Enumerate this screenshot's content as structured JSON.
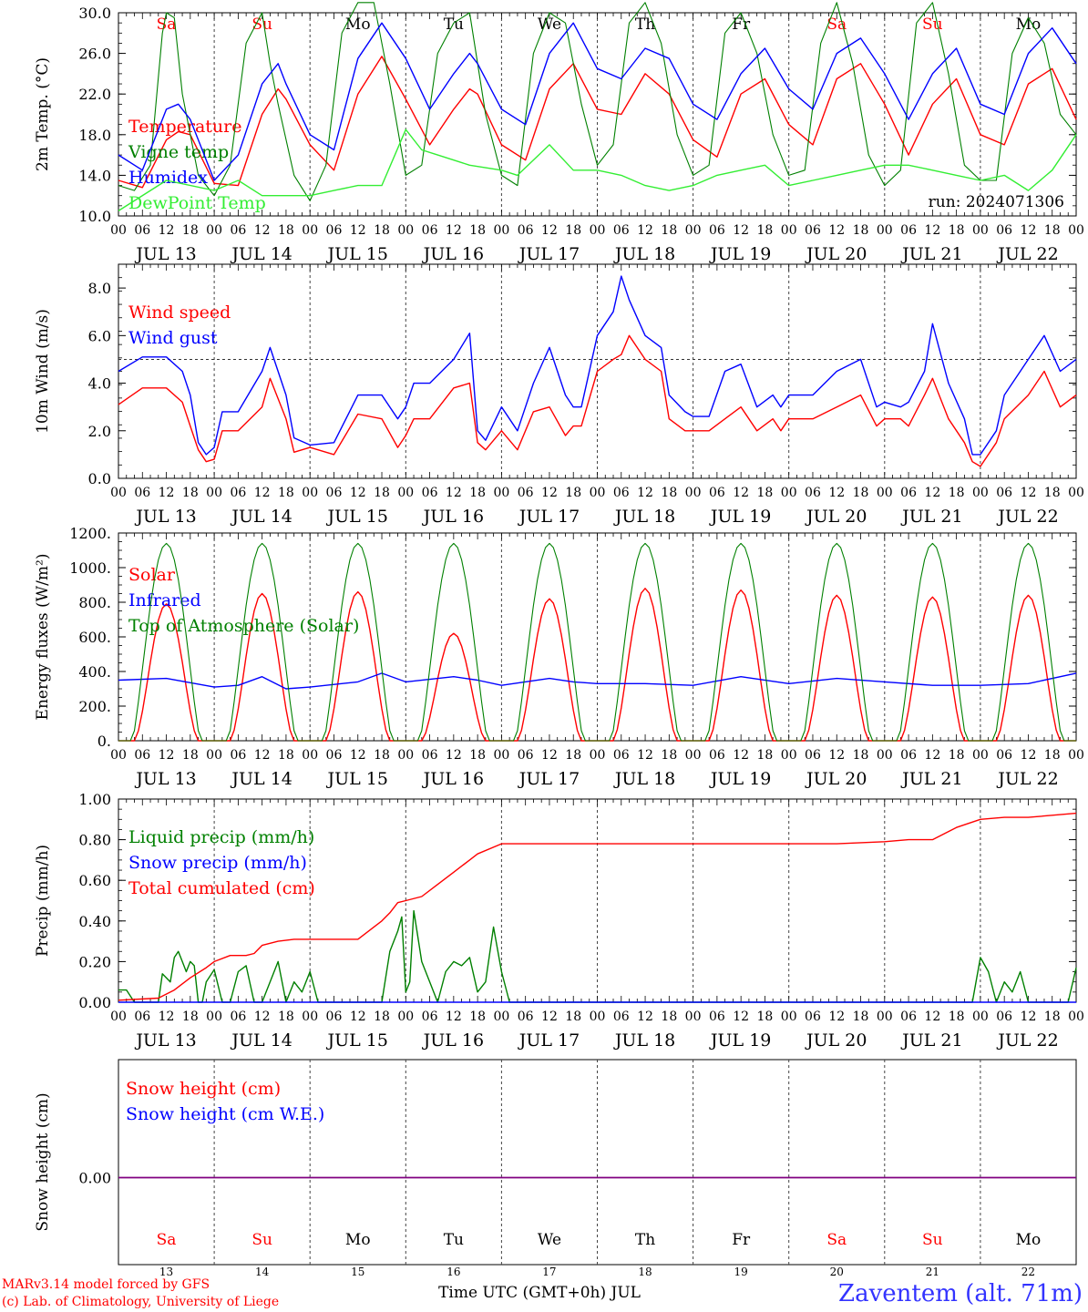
{
  "run_label": "run: 2024071306",
  "footer": {
    "model": "MARv3.14 model forced by GFS",
    "credit": "(c) Lab. of Climatology, University of Liege",
    "xtitle": "Time UTC (GMT+0h) JUL",
    "station": "Zaventem (alt. 71m)"
  },
  "colors": {
    "red": "#ff0000",
    "blue": "#0000ff",
    "green": "#008000",
    "lightgreen": "#33ee33",
    "purple": "#800080"
  },
  "days": [
    "JUL 13",
    "JUL 14",
    "JUL 15",
    "JUL 16",
    "JUL 17",
    "JUL 18",
    "JUL 19",
    "JUL 20",
    "JUL 21",
    "JUL 22"
  ],
  "day_numbers": [
    "13",
    "14",
    "15",
    "16",
    "17",
    "18",
    "19",
    "20",
    "21",
    "22"
  ],
  "weekdays": [
    "Sa",
    "Su",
    "Mo",
    "Tu",
    "We",
    "Th",
    "Fr",
    "Sa",
    "Su",
    "Mo"
  ],
  "weekday_colors": [
    "#ff0000",
    "#ff0000",
    "#000000",
    "#000000",
    "#000000",
    "#000000",
    "#000000",
    "#ff0000",
    "#ff0000",
    "#000000"
  ],
  "hour_ticks": [
    "00",
    "06",
    "12",
    "18"
  ],
  "chart_data": [
    {
      "type": "line",
      "ylabel": "2m Temp. (°C)",
      "ylim": [
        10,
        30
      ],
      "yticks": [
        "10.0",
        "14.0",
        "18.0",
        "22.0",
        "26.0",
        "30.0"
      ],
      "x_hours_range": [
        0,
        240
      ],
      "series": [
        {
          "name": "Temperature",
          "color": "#ff0000",
          "x": [
            0,
            6,
            12,
            15,
            18,
            24,
            30,
            36,
            40,
            42,
            48,
            54,
            60,
            66,
            72,
            78,
            84,
            88,
            90,
            96,
            102,
            108,
            114,
            120,
            126,
            132,
            138,
            144,
            150,
            156,
            162,
            168,
            174,
            180,
            186,
            192,
            198,
            204,
            210,
            216,
            222,
            228,
            234,
            240
          ],
          "values": [
            13.5,
            12.8,
            17.5,
            18.3,
            18.0,
            13.2,
            13.0,
            20.0,
            22.5,
            21.5,
            17.0,
            14.5,
            22.0,
            25.7,
            21.5,
            17.0,
            20.5,
            22.5,
            22.0,
            17.0,
            15.5,
            22.5,
            25.0,
            20.5,
            20.0,
            24.0,
            22.0,
            17.5,
            15.8,
            22.0,
            23.5,
            19.0,
            17.0,
            23.5,
            25.0,
            21.0,
            16.0,
            21.0,
            23.5,
            18.0,
            17.0,
            23.0,
            24.5,
            19.5
          ]
        },
        {
          "name": "Vigne temp",
          "color": "#008000",
          "x": [
            0,
            4,
            8,
            11,
            12,
            14,
            16,
            20,
            24,
            28,
            32,
            36,
            38,
            40,
            44,
            48,
            52,
            56,
            60,
            64,
            68,
            72,
            76,
            80,
            84,
            88,
            92,
            96,
            100,
            104,
            108,
            112,
            116,
            120,
            124,
            128,
            132,
            136,
            140,
            144,
            148,
            152,
            156,
            160,
            164,
            168,
            172,
            176,
            180,
            184,
            188,
            192,
            196,
            200,
            204,
            208,
            212,
            216,
            220,
            224,
            228,
            232,
            236,
            240
          ],
          "values": [
            13.0,
            12.5,
            15.0,
            28.0,
            30.0,
            29.5,
            22.0,
            14.0,
            12.0,
            15.0,
            27.0,
            30.0,
            25.0,
            21.0,
            14.0,
            11.5,
            15.0,
            28.0,
            31.0,
            31.0,
            23.0,
            14.0,
            15.0,
            26.0,
            29.0,
            30.0,
            20.0,
            14.0,
            13.0,
            26.0,
            30.0,
            29.0,
            21.0,
            15.0,
            17.0,
            29.0,
            31.0,
            27.0,
            18.0,
            14.0,
            15.0,
            28.0,
            30.0,
            26.0,
            18.0,
            14.0,
            14.5,
            27.0,
            31.0,
            25.0,
            16.0,
            13.0,
            14.5,
            29.0,
            31.0,
            24.0,
            15.0,
            13.5,
            13.5,
            26.0,
            29.5,
            27.0,
            20.0,
            18.0
          ]
        },
        {
          "name": "Humidex",
          "color": "#0000ff",
          "x": [
            0,
            6,
            12,
            15,
            18,
            24,
            30,
            36,
            40,
            42,
            48,
            54,
            60,
            66,
            72,
            78,
            84,
            88,
            90,
            96,
            102,
            108,
            114,
            120,
            126,
            132,
            138,
            144,
            150,
            156,
            162,
            168,
            174,
            180,
            186,
            192,
            198,
            204,
            210,
            216,
            222,
            228,
            234,
            240
          ],
          "values": [
            16.0,
            14.5,
            20.5,
            21.0,
            19.5,
            13.5,
            16.0,
            23.0,
            25.0,
            23.0,
            18.0,
            16.5,
            25.5,
            29.0,
            25.5,
            20.5,
            24.0,
            26.0,
            25.0,
            20.5,
            19.0,
            26.0,
            29.0,
            24.5,
            23.5,
            26.5,
            25.5,
            21.0,
            19.5,
            24.0,
            26.5,
            22.5,
            20.5,
            26.0,
            27.5,
            24.0,
            19.5,
            24.0,
            26.5,
            21.0,
            20.0,
            26.0,
            28.5,
            25.0
          ]
        },
        {
          "name": "DewPoint Temp",
          "color": "#33ee33",
          "x": [
            0,
            12,
            24,
            30,
            36,
            42,
            48,
            54,
            60,
            66,
            72,
            76,
            80,
            84,
            88,
            96,
            100,
            108,
            114,
            120,
            126,
            132,
            138,
            144,
            150,
            156,
            162,
            168,
            174,
            180,
            186,
            192,
            198,
            204,
            210,
            216,
            222,
            228,
            234,
            240
          ],
          "values": [
            10.5,
            13.5,
            12.5,
            13.5,
            12.0,
            12.0,
            12.0,
            12.5,
            13.0,
            13.0,
            18.5,
            16.5,
            16.0,
            15.5,
            15.0,
            14.5,
            14.0,
            17.0,
            14.5,
            14.5,
            14.0,
            13.0,
            12.5,
            13.0,
            14.0,
            14.5,
            15.0,
            13.0,
            13.5,
            14.0,
            14.5,
            15.0,
            15.0,
            14.5,
            14.0,
            13.5,
            14.0,
            12.5,
            14.5,
            18.0
          ]
        }
      ]
    },
    {
      "type": "line",
      "ylabel": "10m Wind (m/s)",
      "ylim": [
        0,
        9
      ],
      "yticks": [
        "0.0",
        "2.0",
        "4.0",
        "6.0",
        "8.0"
      ],
      "reference_line": 5,
      "series": [
        {
          "name": "Wind speed",
          "color": "#ff0000",
          "x": [
            0,
            6,
            12,
            16,
            18,
            20,
            22,
            24,
            26,
            30,
            36,
            38,
            42,
            44,
            48,
            54,
            60,
            66,
            70,
            72,
            74,
            78,
            84,
            88,
            90,
            92,
            96,
            100,
            104,
            108,
            112,
            114,
            116,
            120,
            124,
            126,
            128,
            132,
            136,
            138,
            142,
            144,
            148,
            152,
            156,
            160,
            164,
            166,
            168,
            174,
            180,
            186,
            190,
            192,
            196,
            198,
            202,
            204,
            208,
            212,
            214,
            216,
            220,
            222,
            228,
            232,
            236,
            240
          ],
          "values": [
            3.1,
            3.8,
            3.8,
            3.2,
            2.2,
            1.2,
            0.7,
            0.8,
            2.0,
            2.0,
            3.0,
            4.2,
            2.5,
            1.1,
            1.3,
            1.0,
            2.7,
            2.5,
            1.3,
            1.8,
            2.5,
            2.5,
            3.8,
            4.0,
            1.5,
            1.2,
            2.0,
            1.2,
            2.8,
            3.0,
            1.8,
            2.2,
            2.2,
            4.5,
            5.0,
            5.2,
            6.0,
            5.0,
            4.5,
            2.5,
            2.0,
            2.0,
            2.0,
            2.5,
            3.0,
            2.0,
            2.5,
            2.0,
            2.5,
            2.5,
            3.0,
            3.5,
            2.2,
            2.5,
            2.5,
            2.2,
            3.5,
            4.2,
            2.5,
            1.5,
            0.7,
            0.5,
            1.5,
            2.5,
            3.5,
            4.5,
            3.0,
            3.5
          ]
        },
        {
          "name": "Wind gust",
          "color": "#0000ff",
          "x": [
            0,
            6,
            12,
            16,
            18,
            20,
            22,
            24,
            26,
            30,
            36,
            38,
            42,
            44,
            48,
            54,
            60,
            66,
            70,
            72,
            74,
            78,
            84,
            88,
            90,
            92,
            96,
            100,
            104,
            108,
            112,
            114,
            116,
            120,
            124,
            126,
            128,
            132,
            136,
            138,
            142,
            144,
            148,
            152,
            156,
            160,
            164,
            166,
            168,
            174,
            180,
            186,
            190,
            192,
            196,
            198,
            202,
            204,
            208,
            212,
            214,
            216,
            220,
            222,
            228,
            232,
            236,
            240
          ],
          "values": [
            4.5,
            5.1,
            5.1,
            4.5,
            3.5,
            1.5,
            1.0,
            1.3,
            2.8,
            2.8,
            4.5,
            5.5,
            3.5,
            1.7,
            1.4,
            1.5,
            3.5,
            3.5,
            2.5,
            3.0,
            4.0,
            4.0,
            5.0,
            6.1,
            2.0,
            1.6,
            3.0,
            2.0,
            4.0,
            5.5,
            3.5,
            3.0,
            3.0,
            6.0,
            7.0,
            8.5,
            7.5,
            6.0,
            5.5,
            3.5,
            2.8,
            2.6,
            2.6,
            4.5,
            4.8,
            3.0,
            3.5,
            3.0,
            3.5,
            3.5,
            4.5,
            5.0,
            3.0,
            3.2,
            3.0,
            3.2,
            4.5,
            6.5,
            4.0,
            2.5,
            1.0,
            1.0,
            2.0,
            3.5,
            5.0,
            6.0,
            4.5,
            5.0
          ]
        }
      ]
    },
    {
      "type": "line",
      "ylabel": "Energy fluxes (W/m²)",
      "ylim": [
        0,
        1200
      ],
      "yticks": [
        "0.",
        "200.",
        "400.",
        "600.",
        "800.",
        "1000.",
        "1200."
      ],
      "series": [
        {
          "name": "Solar",
          "color": "#ff0000",
          "peaks": [
            790,
            850,
            860,
            620,
            820,
            880,
            870,
            840,
            830,
            840
          ]
        },
        {
          "name": "Infrared",
          "color": "#0000ff",
          "x": [
            0,
            12,
            24,
            30,
            36,
            42,
            48,
            60,
            66,
            72,
            84,
            90,
            96,
            108,
            114,
            120,
            132,
            144,
            156,
            168,
            180,
            192,
            204,
            216,
            228,
            240
          ],
          "values": [
            350,
            360,
            310,
            320,
            370,
            300,
            310,
            340,
            390,
            340,
            370,
            350,
            320,
            360,
            340,
            330,
            330,
            320,
            370,
            330,
            360,
            340,
            320,
            320,
            330,
            390
          ]
        },
        {
          "name": "Top of Atmosphere (Solar)",
          "color": "#008000",
          "peak": 1140
        }
      ]
    },
    {
      "type": "line",
      "ylabel": "Precip (mm/h)",
      "ylim": [
        0,
        1.0
      ],
      "yticks": [
        "0.00",
        "0.20",
        "0.40",
        "0.60",
        "0.80",
        "1.00"
      ],
      "series": [
        {
          "name": "Liquid precip (mm/h)",
          "color": "#008000",
          "x": [
            0,
            2,
            4,
            6,
            8,
            10,
            11,
            13,
            14,
            15,
            16,
            17,
            18,
            19,
            20,
            21,
            22,
            24,
            26,
            28,
            30,
            32,
            34,
            36,
            40,
            42,
            44,
            46,
            48,
            50,
            66,
            68,
            70,
            71,
            72,
            73,
            74,
            76,
            78,
            80,
            82,
            84,
            86,
            88,
            90,
            92,
            94,
            96,
            98,
            100,
            214,
            216,
            218,
            220,
            222,
            224,
            226,
            228,
            230,
            238,
            240
          ],
          "values": [
            0.06,
            0.06,
            0,
            0,
            0,
            0,
            0.14,
            0.1,
            0.22,
            0.25,
            0.2,
            0.15,
            0.2,
            0.18,
            0.0,
            0.0,
            0.1,
            0.16,
            0,
            0,
            0.15,
            0.18,
            0,
            0,
            0.2,
            0.0,
            0.1,
            0.05,
            0.15,
            0,
            0,
            0.25,
            0.35,
            0.42,
            0.05,
            0.1,
            0.45,
            0.2,
            0.1,
            0.0,
            0.15,
            0.2,
            0.18,
            0.22,
            0.05,
            0.1,
            0.37,
            0.15,
            0,
            0,
            0,
            0.22,
            0.15,
            0,
            0.1,
            0.05,
            0.15,
            0,
            0,
            0,
            0.17
          ]
        },
        {
          "name": "Snow precip (mm/h)",
          "color": "#0000ff",
          "x": [
            0,
            240
          ],
          "values": [
            0,
            0
          ]
        },
        {
          "name": "Total cumulated (cm)",
          "color": "#ff0000",
          "x": [
            0,
            10,
            14,
            18,
            22,
            24,
            28,
            32,
            34,
            36,
            40,
            44,
            48,
            60,
            66,
            68,
            70,
            72,
            76,
            80,
            84,
            88,
            90,
            96,
            180,
            192,
            198,
            200,
            204,
            210,
            216,
            222,
            228,
            240
          ],
          "values": [
            0.01,
            0.02,
            0.06,
            0.12,
            0.17,
            0.2,
            0.23,
            0.23,
            0.24,
            0.28,
            0.3,
            0.31,
            0.31,
            0.31,
            0.4,
            0.44,
            0.49,
            0.5,
            0.52,
            0.58,
            0.64,
            0.7,
            0.73,
            0.78,
            0.78,
            0.79,
            0.8,
            0.8,
            0.8,
            0.86,
            0.9,
            0.91,
            0.91,
            0.93
          ]
        }
      ]
    },
    {
      "type": "line",
      "ylabel": "Snow height (cm)",
      "yticks": [
        "0.00"
      ],
      "series": [
        {
          "name": "Snow height (cm)",
          "color": "#ff0000",
          "x": [
            0,
            240
          ],
          "values": [
            0,
            0
          ]
        },
        {
          "name": "Snow height (cm W.E.)",
          "color": "#0000ff",
          "x": [
            0,
            240
          ],
          "values": [
            0,
            0
          ]
        }
      ]
    }
  ]
}
